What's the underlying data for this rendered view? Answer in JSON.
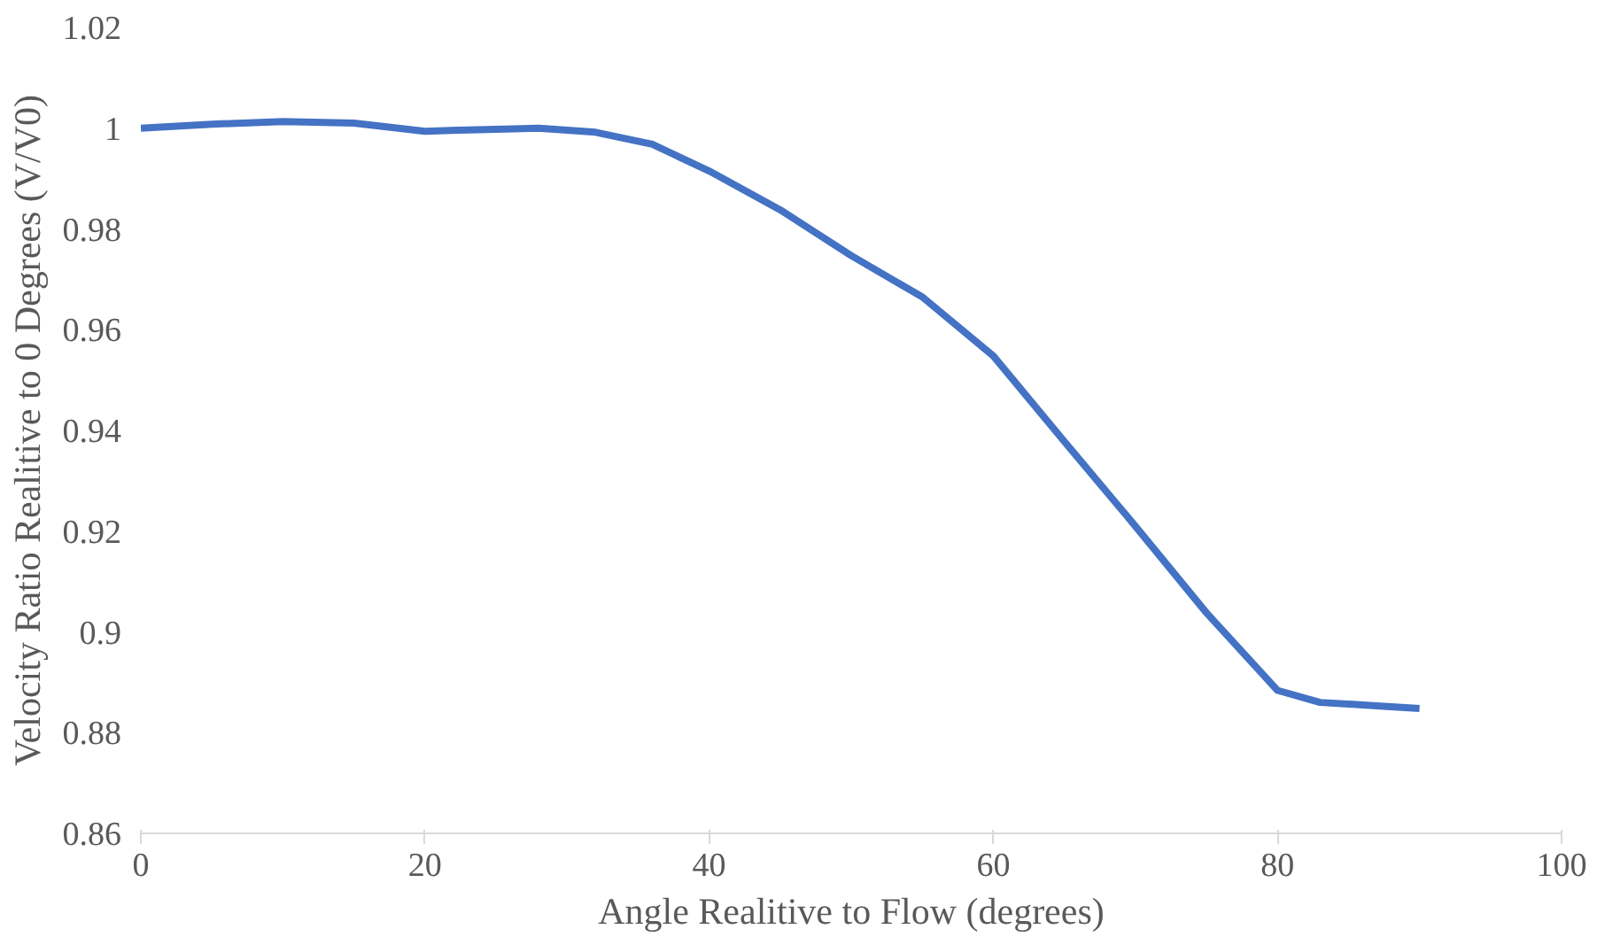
{
  "chart_data": {
    "type": "line",
    "xlabel": "Angle Realitive to Flow (degrees)",
    "ylabel": "Velocity Ratio Realitive to 0 Degrees (V/V0)",
    "x": [
      0,
      5,
      10,
      15,
      20,
      25,
      28,
      32,
      36,
      40,
      45,
      50,
      55,
      60,
      65,
      70,
      75,
      80,
      83,
      86,
      90
    ],
    "series": [
      {
        "color": "#4472c4",
        "values": [
          1.0,
          1.0008,
          1.0013,
          1.001,
          0.9994,
          0.9998,
          1.0,
          0.9992,
          0.9968,
          0.9915,
          0.9838,
          0.9747,
          0.9665,
          0.9548,
          0.9378,
          0.921,
          0.9038,
          0.8884,
          0.886,
          0.8855,
          0.8848
        ]
      }
    ],
    "xlim": [
      0,
      100
    ],
    "xticks": [
      0,
      20,
      40,
      60,
      80,
      100
    ],
    "ylim": [
      0.86,
      1.02
    ],
    "yticks": [
      0.86,
      0.88,
      {
        "value": 0.9,
        "label": "0.9"
      },
      0.92,
      0.94,
      0.96,
      0.98,
      {
        "value": 1.0,
        "label": "1"
      },
      1.02
    ],
    "grid": false,
    "marker": "none",
    "line_style": "solid"
  }
}
